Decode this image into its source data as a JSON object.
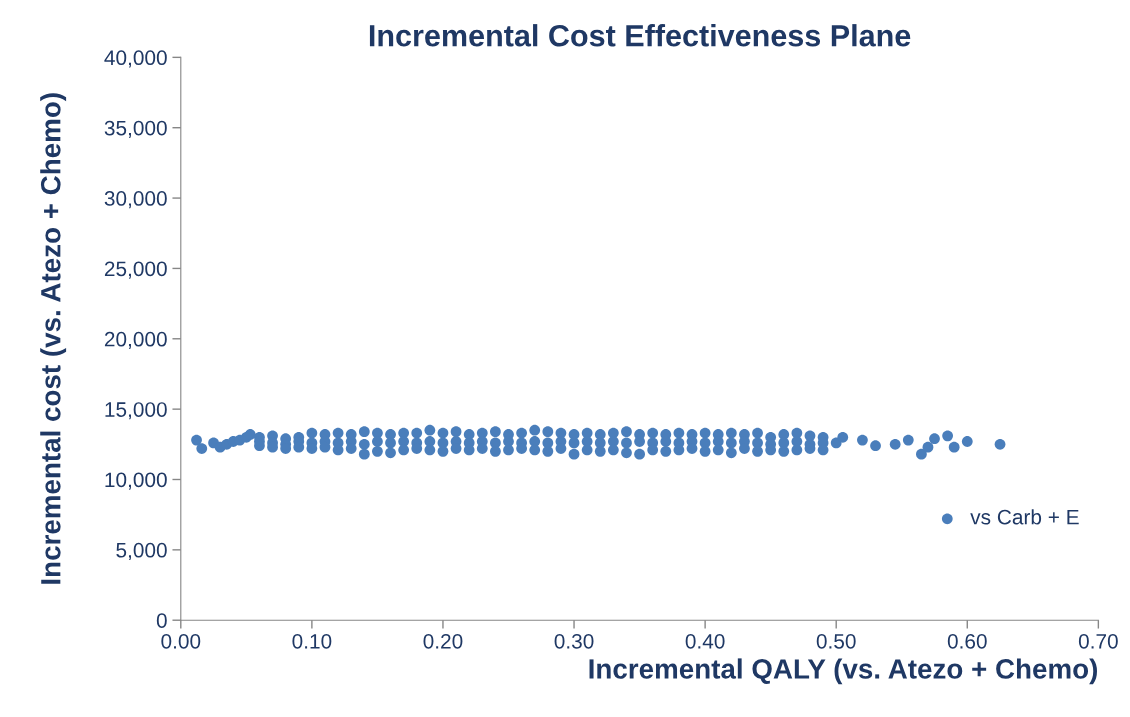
{
  "chart_data": {
    "type": "scatter",
    "title": "Incremental Cost Effectiveness Plane",
    "xlabel": "Incremental QALY (vs. Atezo + Chemo)",
    "ylabel": "Incremental cost (vs. Atezo + Chemo)",
    "xlim": [
      0,
      0.7
    ],
    "ylim": [
      0,
      40000
    ],
    "xticks": [
      {
        "value": 0,
        "label": "0.00"
      },
      {
        "value": 0.1,
        "label": "0.10"
      },
      {
        "value": 0.2,
        "label": "0.20"
      },
      {
        "value": 0.3,
        "label": "0.30"
      },
      {
        "value": 0.4,
        "label": "0.40"
      },
      {
        "value": 0.5,
        "label": "0.50"
      },
      {
        "value": 0.6,
        "label": "0.60"
      },
      {
        "value": 0.7,
        "label": "0.70"
      }
    ],
    "yticks": [
      0,
      {
        "value": 5000,
        "label": "5,000"
      },
      {
        "value": 10000,
        "label": "10,000"
      },
      {
        "value": 15000,
        "label": "15,000"
      },
      {
        "value": 20000,
        "label": "20,000"
      },
      {
        "value": 25000,
        "label": "25,000"
      },
      {
        "value": 30000,
        "label": "30,000"
      },
      {
        "value": 35000,
        "label": "35,000"
      },
      {
        "value": 40000,
        "label": "40,000"
      }
    ],
    "grid": false,
    "legend": "right",
    "marker": "circle",
    "series": [
      {
        "name": "vs Carb + E",
        "color": "#4a7ebb",
        "x": [
          0.012,
          0.016,
          0.025,
          0.03,
          0.035,
          0.04,
          0.045,
          0.05,
          0.053,
          0.06,
          0.06,
          0.06,
          0.07,
          0.07,
          0.07,
          0.08,
          0.08,
          0.08,
          0.09,
          0.09,
          0.09,
          0.1,
          0.1,
          0.1,
          0.11,
          0.11,
          0.11,
          0.12,
          0.12,
          0.12,
          0.13,
          0.13,
          0.13,
          0.14,
          0.14,
          0.14,
          0.15,
          0.15,
          0.15,
          0.16,
          0.16,
          0.16,
          0.17,
          0.17,
          0.17,
          0.18,
          0.18,
          0.18,
          0.19,
          0.19,
          0.19,
          0.2,
          0.2,
          0.2,
          0.21,
          0.21,
          0.21,
          0.22,
          0.22,
          0.22,
          0.23,
          0.23,
          0.23,
          0.24,
          0.24,
          0.24,
          0.25,
          0.25,
          0.25,
          0.26,
          0.26,
          0.26,
          0.27,
          0.27,
          0.27,
          0.28,
          0.28,
          0.28,
          0.29,
          0.29,
          0.29,
          0.3,
          0.3,
          0.3,
          0.31,
          0.31,
          0.31,
          0.32,
          0.32,
          0.32,
          0.33,
          0.33,
          0.33,
          0.34,
          0.34,
          0.34,
          0.35,
          0.35,
          0.35,
          0.36,
          0.36,
          0.36,
          0.37,
          0.37,
          0.37,
          0.38,
          0.38,
          0.38,
          0.39,
          0.39,
          0.39,
          0.4,
          0.4,
          0.4,
          0.41,
          0.41,
          0.41,
          0.42,
          0.42,
          0.42,
          0.43,
          0.43,
          0.43,
          0.44,
          0.44,
          0.44,
          0.45,
          0.45,
          0.45,
          0.46,
          0.46,
          0.46,
          0.47,
          0.47,
          0.47,
          0.48,
          0.48,
          0.48,
          0.49,
          0.49,
          0.49,
          0.5,
          0.505,
          0.52,
          0.53,
          0.545,
          0.555,
          0.565,
          0.57,
          0.575,
          0.585,
          0.59,
          0.6,
          0.625
        ],
        "values": [
          12800,
          12200,
          12600,
          12300,
          12500,
          12700,
          12800,
          13000,
          13200,
          13000,
          12700,
          12400,
          13100,
          12600,
          12300,
          12900,
          12500,
          12200,
          13000,
          12700,
          12300,
          13300,
          12600,
          12200,
          13200,
          12700,
          12300,
          13300,
          12600,
          12100,
          13200,
          12700,
          12200,
          13400,
          12500,
          11800,
          13300,
          12700,
          12000,
          13200,
          12600,
          11900,
          13300,
          12700,
          12100,
          13300,
          12600,
          12200,
          13500,
          12700,
          12100,
          13300,
          12600,
          12000,
          13400,
          12700,
          12200,
          13200,
          12600,
          12100,
          13300,
          12700,
          12200,
          13400,
          12600,
          12000,
          13200,
          12700,
          12100,
          13300,
          12600,
          12200,
          13500,
          12700,
          12100,
          13400,
          12600,
          12000,
          13300,
          12700,
          12200,
          13200,
          12600,
          11800,
          13300,
          12700,
          12100,
          13200,
          12600,
          12000,
          13300,
          12700,
          12100,
          13400,
          12600,
          11900,
          13200,
          12700,
          11800,
          13300,
          12600,
          12100,
          13200,
          12700,
          12000,
          13300,
          12600,
          12100,
          13200,
          12700,
          12200,
          13300,
          12600,
          12000,
          13200,
          12700,
          12100,
          13300,
          12600,
          11900,
          13200,
          12700,
          12200,
          13300,
          12600,
          12000,
          13000,
          12500,
          12100,
          13200,
          12600,
          12000,
          13300,
          12700,
          12100,
          13100,
          12500,
          12200,
          13000,
          12600,
          12100,
          12600,
          13000,
          12800,
          12400,
          12500,
          12800,
          11800,
          12300,
          12900,
          13100,
          12300,
          12700,
          12500
        ]
      }
    ]
  }
}
